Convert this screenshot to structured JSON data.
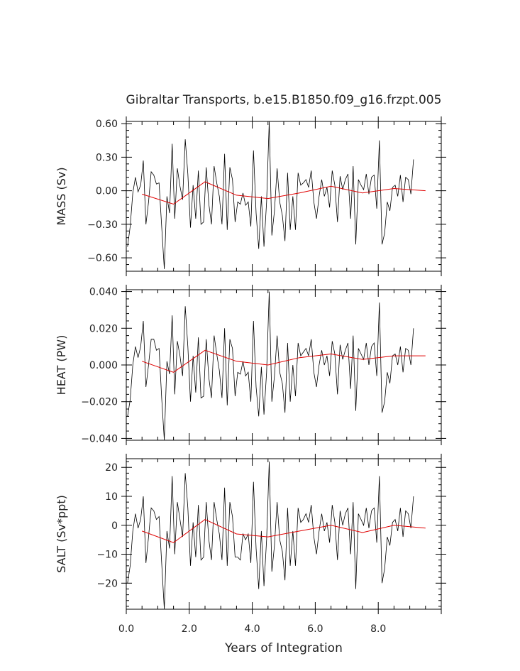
{
  "chart_data": {
    "title": "Gibraltar Transports, b.e15.B1850.f09_g16.frzpt.005",
    "xlabel": "Years of Integration",
    "x_tick_labels": [
      "0.0",
      "2.0",
      "4.0",
      "6.0",
      "8.0"
    ],
    "xlim": [
      0,
      10
    ],
    "panels": [
      {
        "type": "line",
        "ylabel": "MASS (Sv)",
        "ylim": [
          -0.72,
          0.62
        ],
        "y_ticks": [
          -0.6,
          -0.3,
          0,
          0.3,
          0.6
        ],
        "y_tick_labels": [
          "−0.60",
          "−0.30",
          "0.00",
          "0.30",
          "0.60"
        ],
        "series": [
          {
            "color": "#000000",
            "x_start": 0.04,
            "x_step": 0.0833,
            "values": [
              -0.5,
              -0.32,
              -0.02,
              0.12,
              -0.01,
              0.05,
              0.27,
              -0.3,
              -0.1,
              0.17,
              0.14,
              0.06,
              0.07,
              -0.32,
              -0.7,
              -0.05,
              -0.2,
              0.42,
              -0.25,
              0.2,
              0.04,
              -0.08,
              0.46,
              0.15,
              -0.33,
              0.05,
              -0.25,
              0.18,
              -0.3,
              -0.28,
              0.21,
              -0.12,
              -0.3,
              0.22,
              0.07,
              -0.05,
              -0.3,
              0.33,
              -0.35,
              0.21,
              0.1,
              -0.28,
              -0.1,
              -0.12,
              -0.02,
              -0.13,
              -0.1,
              -0.32,
              0.36,
              -0.2,
              -0.52,
              -0.05,
              -0.5,
              -0.1,
              0.62,
              -0.4,
              -0.18,
              0.2,
              -0.1,
              -0.22,
              -0.45,
              0.16,
              -0.35,
              -0.05,
              -0.35,
              0.16,
              0.05,
              0.07,
              0.1,
              0.03,
              0.18,
              -0.1,
              -0.25,
              -0.05,
              0.1,
              -0.05,
              0.03,
              -0.15,
              0.18,
              0.05,
              -0.28,
              0.13,
              0.01,
              0.1,
              0.15,
              -0.25,
              0.22,
              -0.48,
              0.1,
              0.05,
              0.01,
              0.15,
              -0.03,
              0.12,
              0.14,
              -0.16,
              0.45,
              -0.48,
              -0.38,
              -0.1,
              -0.18,
              0.03,
              0.05,
              -0.05,
              0.14,
              -0.1,
              0.12,
              0.1,
              -0.03,
              0.28
            ]
          },
          {
            "color": "#e00000",
            "x": [
              0.5,
              1.5,
              2.5,
              3.5,
              4.5,
              5.5,
              6.5,
              7.5,
              8.5,
              9.5
            ],
            "values": [
              -0.03,
              -0.12,
              0.08,
              -0.04,
              -0.07,
              -0.02,
              0.04,
              -0.02,
              0.02,
              0.0
            ]
          }
        ]
      },
      {
        "type": "line",
        "ylabel": "HEAT (PW)",
        "ylim": [
          -0.041,
          0.041
        ],
        "y_ticks": [
          -0.04,
          -0.02,
          0,
          0.02,
          0.04
        ],
        "y_tick_labels": [
          "−0.040",
          "−0.020",
          "0.000",
          "0.020",
          "0.040"
        ],
        "series": [
          {
            "color": "#000000",
            "x_start": 0.04,
            "x_step": 0.0833,
            "values": [
              -0.028,
              -0.019,
              0.0,
              0.01,
              0.004,
              0.01,
              0.024,
              -0.012,
              0.0,
              0.014,
              0.014,
              0.008,
              0.009,
              -0.018,
              -0.041,
              0.002,
              -0.005,
              0.027,
              -0.016,
              0.013,
              0.005,
              -0.006,
              0.032,
              0.01,
              -0.02,
              0.005,
              -0.015,
              0.015,
              -0.018,
              -0.017,
              0.014,
              -0.007,
              -0.018,
              0.016,
              0.006,
              -0.003,
              -0.018,
              0.02,
              -0.022,
              0.014,
              0.009,
              -0.017,
              -0.004,
              -0.005,
              0.002,
              -0.006,
              -0.004,
              -0.02,
              0.024,
              -0.012,
              -0.028,
              -0.001,
              -0.027,
              -0.004,
              0.04,
              -0.02,
              -0.006,
              0.016,
              -0.004,
              -0.01,
              -0.026,
              0.012,
              -0.02,
              0.0,
              -0.017,
              0.012,
              0.005,
              0.007,
              0.009,
              0.005,
              0.014,
              -0.004,
              -0.012,
              0.0,
              0.008,
              0.0,
              0.005,
              -0.006,
              0.013,
              0.006,
              -0.016,
              0.011,
              0.003,
              0.008,
              0.012,
              -0.013,
              0.016,
              -0.025,
              0.009,
              0.006,
              0.003,
              0.012,
              0.0,
              0.01,
              0.012,
              -0.006,
              0.034,
              -0.026,
              -0.02,
              -0.004,
              -0.01,
              0.005,
              0.006,
              0.0,
              0.01,
              -0.004,
              0.009,
              0.008,
              0.0,
              0.02
            ]
          },
          {
            "color": "#e00000",
            "x": [
              0.5,
              1.5,
              2.5,
              3.5,
              4.5,
              5.5,
              6.5,
              7.5,
              8.5,
              9.5
            ],
            "values": [
              0.002,
              -0.004,
              0.008,
              0.002,
              0.0,
              0.004,
              0.006,
              0.003,
              0.005,
              0.005
            ]
          }
        ]
      },
      {
        "type": "line",
        "ylabel": "SALT (Sv*ppt)",
        "ylim": [
          -29,
          23
        ],
        "y_ticks": [
          -20,
          -10,
          0,
          10,
          20
        ],
        "y_tick_labels": [
          "−20",
          "−10",
          "0",
          "10",
          "20"
        ],
        "series": [
          {
            "color": "#000000",
            "x_start": 0.04,
            "x_step": 0.0833,
            "values": [
              -20,
              -14,
              -2,
              4,
              -1,
              2,
              10,
              -13,
              -4,
              6,
              5,
              2,
              3,
              -13,
              -29,
              -2,
              -8,
              17,
              -10,
              8,
              2,
              -4,
              18,
              6,
              -14,
              1,
              -11,
              7,
              -12,
              -11,
              8,
              -5,
              -12,
              8,
              2,
              -3,
              -12,
              13,
              -14,
              8,
              3,
              -11,
              -11,
              -12,
              -3,
              -5,
              -3,
              -13,
              15,
              -8,
              -22,
              -2,
              -21,
              -5,
              22,
              -16,
              -7,
              8,
              -5,
              -9,
              -19,
              6,
              -14,
              -2,
              -14,
              6,
              1,
              2,
              4,
              1,
              7,
              -4,
              -10,
              -2,
              4,
              -2,
              1,
              -6,
              7,
              1,
              -12,
              5,
              0,
              4,
              6,
              -10,
              8,
              -22,
              4,
              2,
              0,
              6,
              -1,
              5,
              6,
              -6,
              17,
              -20,
              -15,
              -4,
              -7,
              1,
              2,
              -2,
              6,
              -4,
              5,
              4,
              -1,
              10
            ]
          },
          {
            "color": "#e00000",
            "x": [
              0.5,
              1.5,
              2.5,
              3.5,
              4.5,
              5.5,
              6.5,
              7.5,
              8.5,
              9.5
            ],
            "values": [
              -2,
              -6,
              2,
              -3,
              -4,
              -2,
              0,
              -2.5,
              0,
              -1
            ]
          }
        ]
      }
    ]
  }
}
